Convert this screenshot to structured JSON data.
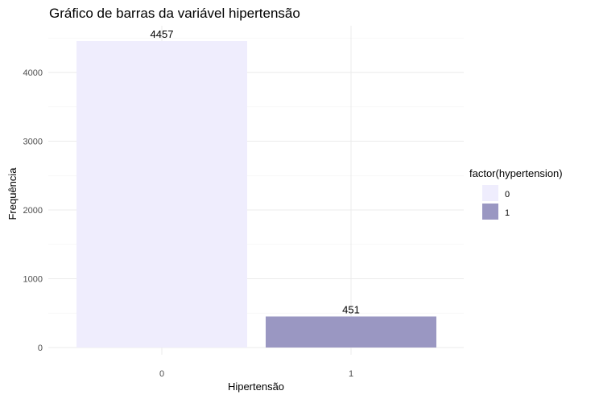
{
  "chart_data": {
    "type": "bar",
    "title": "Gráfico de barras da variável hipertensão",
    "xlabel": "Hipertensão",
    "ylabel": "Frequência",
    "categories": [
      "0",
      "1"
    ],
    "values": [
      4457,
      451
    ],
    "data_labels": [
      "4457",
      "451"
    ],
    "y_ticks": [
      0,
      1000,
      2000,
      3000,
      4000
    ],
    "y_tick_labels": [
      "0",
      "1000",
      "2000",
      "3000",
      "4000"
    ],
    "ylim": [
      0,
      4457
    ],
    "grid": true,
    "legend": {
      "title": "factor(hypertension)",
      "placement": "right",
      "entries": [
        {
          "label": "0",
          "color": "#efedfd"
        },
        {
          "label": "1",
          "color": "#9a97c2"
        }
      ]
    },
    "colors": [
      "#efedfd",
      "#9a97c2"
    ]
  }
}
